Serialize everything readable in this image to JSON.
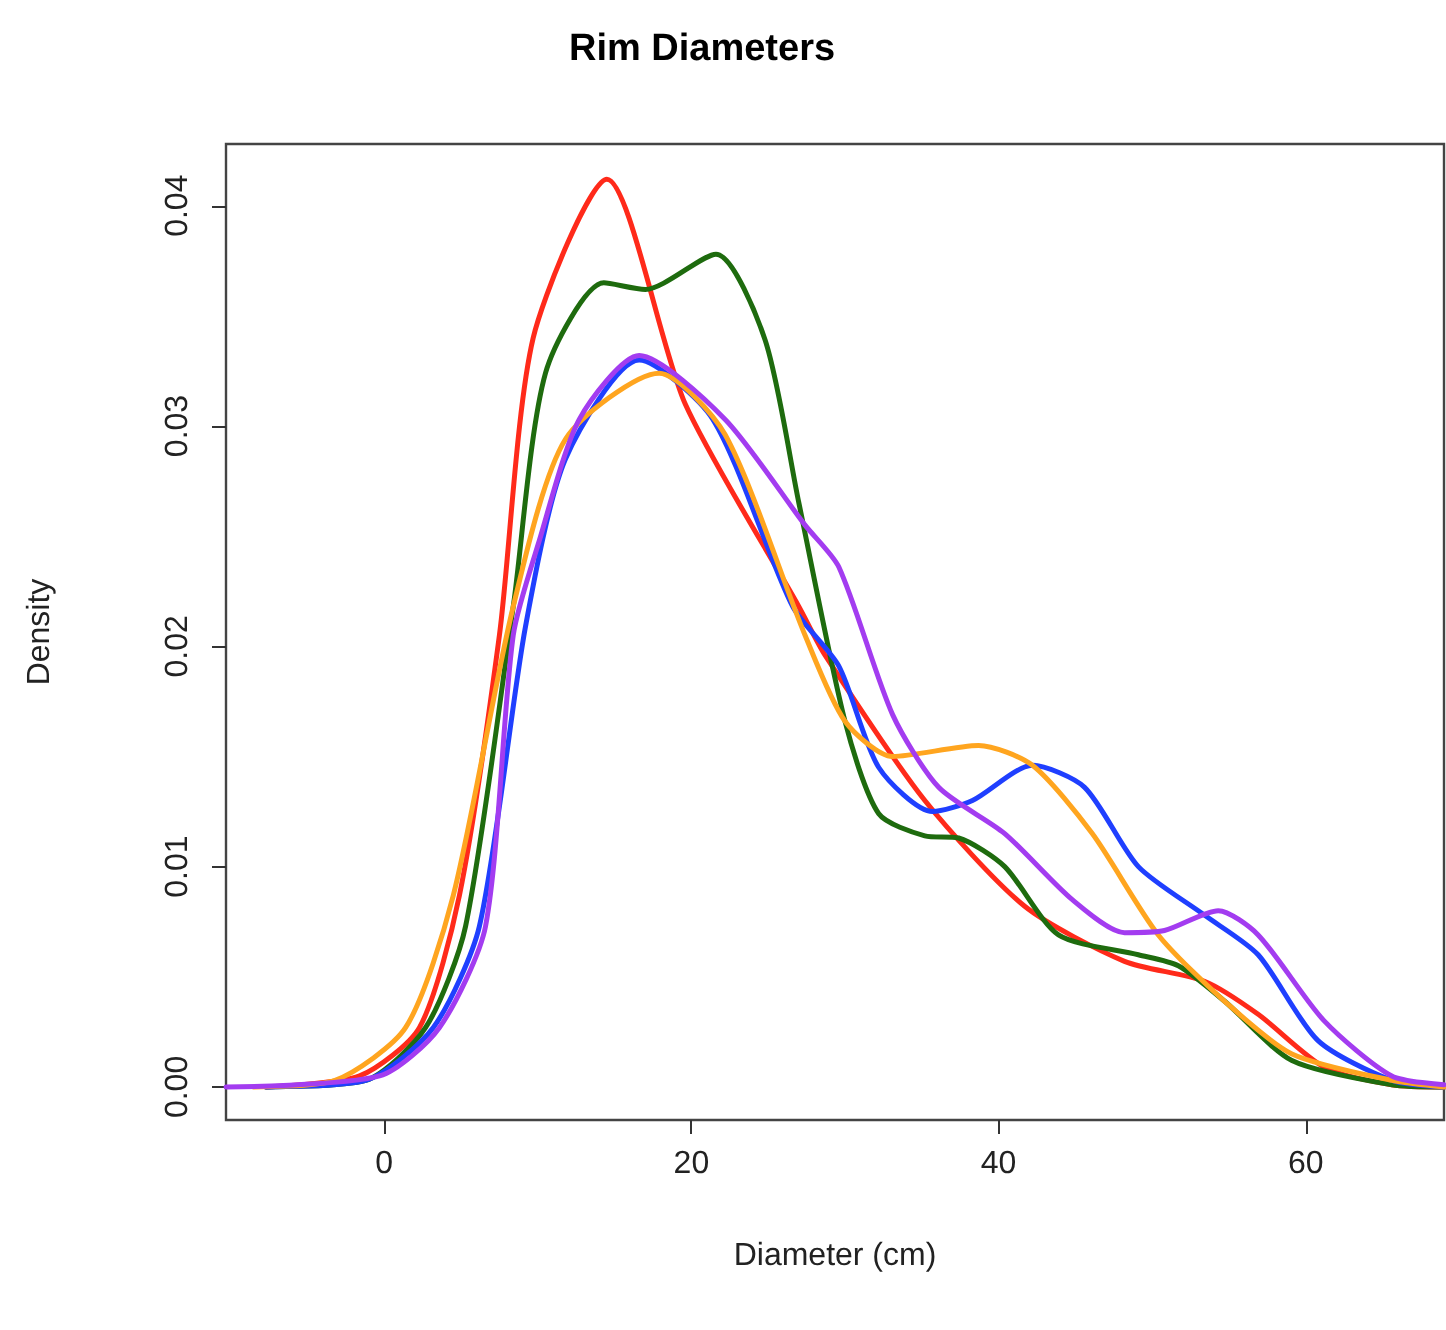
{
  "chart_data": {
    "type": "line",
    "title": "Rim Diameters",
    "xlabel": "Diameter (cm)",
    "ylabel": "Density",
    "xlim": [
      -10.3,
      69
    ],
    "ylim": [
      -0.0015,
      0.0428
    ],
    "xticks": [
      0,
      20,
      40,
      60
    ],
    "yticks": [
      {
        "value": 0,
        "label": "0.00"
      },
      {
        "value": 0.01,
        "label": "0.01"
      },
      {
        "value": 0.02,
        "label": "0.02"
      },
      {
        "value": 0.03,
        "label": "0.03"
      },
      {
        "value": 0.04,
        "label": "0.04"
      }
    ],
    "marker": "none",
    "line_style": "solid",
    "series": [
      {
        "color": "#ff2a1a",
        "x": [
          -7.7,
          -1.6,
          2.3,
          4.9,
          7.5,
          9.7,
          14.5,
          19.6,
          27,
          28.7,
          35.2,
          41.7,
          48.2,
          53.4,
          56.9,
          61.2,
          65.6,
          69
        ],
        "values": [
          0,
          0.0005,
          0.0027,
          0.0087,
          0.0205,
          0.034,
          0.0412,
          0.031,
          0.0218,
          0.0196,
          0.013,
          0.0082,
          0.0057,
          0.0048,
          0.0033,
          0.0009,
          0.0001,
          0
        ]
      },
      {
        "color": "#1e6b0e",
        "x": [
          -7.7,
          -1.2,
          2.7,
          5.3,
          8.4,
          10.5,
          14.3,
          17,
          21.6,
          24.8,
          27,
          30,
          32.2,
          35.2,
          37.4,
          40.4,
          43.9,
          49.1,
          51.7,
          54.7,
          59.1,
          65.6,
          69
        ],
        "values": [
          0,
          0.0003,
          0.0027,
          0.0073,
          0.0218,
          0.0324,
          0.0365,
          0.0362,
          0.0378,
          0.0339,
          0.0265,
          0.0166,
          0.0124,
          0.0114,
          0.0113,
          0.01,
          0.0069,
          0.006,
          0.0055,
          0.0039,
          0.0012,
          0.0001,
          0
        ]
      },
      {
        "color": "#1f3fff",
        "x": [
          -7.7,
          -1.2,
          3.2,
          6.2,
          9.2,
          11.8,
          16.6,
          21.4,
          26.6,
          29.6,
          32.2,
          35.7,
          38.3,
          42.2,
          45.6,
          49.1,
          53.4,
          56.9,
          60.8,
          65.6,
          69
        ],
        "values": [
          0,
          0.0003,
          0.0027,
          0.0073,
          0.0209,
          0.0285,
          0.033,
          0.0303,
          0.0218,
          0.0191,
          0.0145,
          0.0125,
          0.013,
          0.0146,
          0.0136,
          0.01,
          0.0078,
          0.006,
          0.0021,
          0.0003,
          0
        ]
      },
      {
        "color": "#ffa51f",
        "x": [
          -8.5,
          -3.2,
          1.4,
          4.5,
          8.4,
          11.8,
          17.9,
          22.2,
          27.4,
          30,
          33.1,
          38.7,
          42.2,
          46.1,
          50.4,
          54.7,
          59.1,
          65.6,
          69
        ],
        "values": [
          0,
          0.0003,
          0.0027,
          0.0087,
          0.0218,
          0.0294,
          0.0324,
          0.0296,
          0.0205,
          0.0166,
          0.015,
          0.0155,
          0.0146,
          0.0115,
          0.0069,
          0.0039,
          0.0015,
          0.0003,
          0
        ]
      },
      {
        "color": "#a33cf0",
        "x": [
          -10.3,
          -0.3,
          3.6,
          6.6,
          8.4,
          10.1,
          12.7,
          16.6,
          22.2,
          27.4,
          29.6,
          33.1,
          36.1,
          40.4,
          44.8,
          48.2,
          50.8,
          54.3,
          56.9,
          61.2,
          65.6,
          69
        ],
        "values": [
          0,
          0.0005,
          0.0027,
          0.0073,
          0.0205,
          0.0248,
          0.0303,
          0.0332,
          0.0303,
          0.0255,
          0.0236,
          0.0169,
          0.0136,
          0.0115,
          0.0085,
          0.007,
          0.0071,
          0.008,
          0.0069,
          0.003,
          0.0005,
          0.0001
        ]
      }
    ]
  }
}
